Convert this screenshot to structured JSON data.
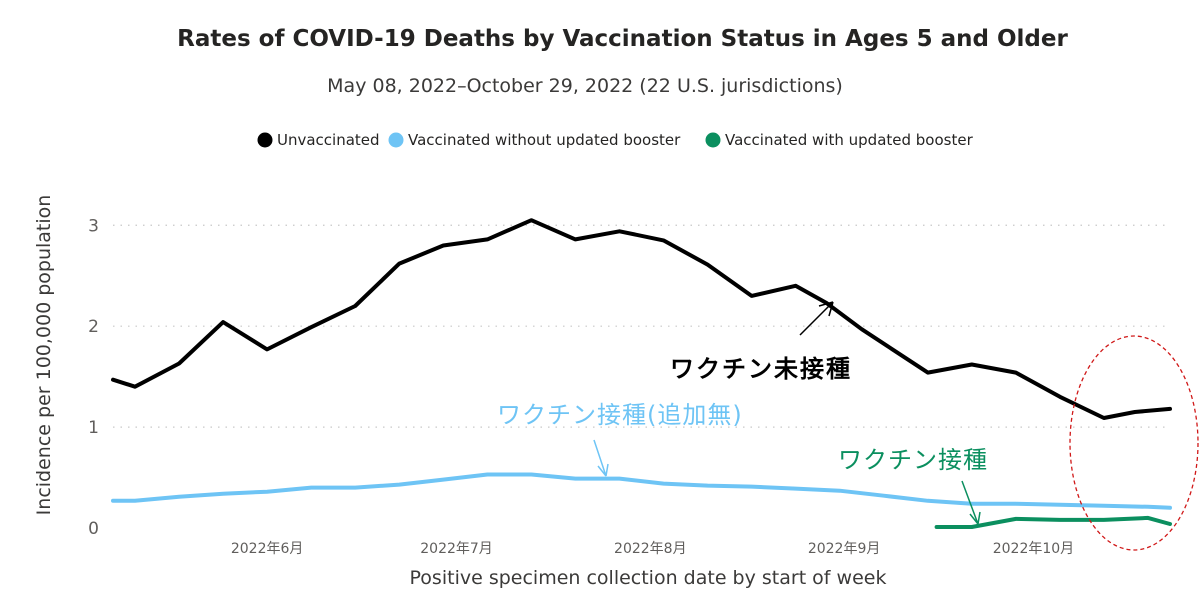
{
  "chart_data": {
    "type": "line",
    "title": "Rates of COVID-19 Deaths by Vaccination Status in Ages 5 and Older",
    "subtitle": "May 08, 2022–October 29, 2022 (22 U.S. jurisdictions)",
    "xlabel": "Positive specimen collection date by start of week",
    "ylabel": "Incidence per 100,000 population",
    "ylim": [
      0,
      3.3
    ],
    "yticks": [
      "0",
      "1",
      "2",
      "3"
    ],
    "xlim": [
      0,
      24
    ],
    "month_ticks": [
      {
        "label": "2022年6月",
        "x": 3.5
      },
      {
        "label": "2022年7月",
        "x": 7.8
      },
      {
        "label": "2022年8月",
        "x": 12.2
      },
      {
        "label": "2022年9月",
        "x": 16.6
      },
      {
        "label": "2022年10月",
        "x": 20.9
      }
    ],
    "legend_position": "top-center",
    "grid": true,
    "series": [
      {
        "name": "Unvaccinated",
        "color": "#000000",
        "x": [
          0,
          0.5,
          1.5,
          2.5,
          3.5,
          4.5,
          5.5,
          6.5,
          7.5,
          8.5,
          9.5,
          10.5,
          11.5,
          12.5,
          13.5,
          14.5,
          15.5,
          16.2,
          17,
          17.7,
          18.5,
          19.5,
          20.5,
          21.5,
          22.5,
          23.2,
          24
        ],
        "values": [
          1.47,
          1.4,
          1.63,
          2.04,
          1.77,
          1.99,
          2.2,
          2.62,
          2.8,
          2.86,
          3.05,
          2.86,
          2.94,
          2.85,
          2.61,
          2.3,
          2.4,
          2.23,
          1.97,
          1.77,
          1.54,
          1.62,
          1.54,
          1.3,
          1.09,
          1.15,
          1.18
        ]
      },
      {
        "name": "Vaccinated without updated booster",
        "color": "#6ec4f5",
        "x": [
          0,
          0.5,
          1.5,
          2.5,
          3.5,
          4.5,
          5.5,
          6.5,
          7.5,
          8.5,
          9.5,
          10.5,
          11.5,
          12.5,
          13.5,
          14.5,
          15.5,
          16.5,
          17.5,
          18.5,
          19.5,
          20.5,
          21.5,
          22.5,
          23.5,
          24
        ],
        "values": [
          0.27,
          0.27,
          0.31,
          0.34,
          0.36,
          0.4,
          0.4,
          0.43,
          0.48,
          0.53,
          0.53,
          0.49,
          0.49,
          0.44,
          0.42,
          0.41,
          0.39,
          0.37,
          0.32,
          0.27,
          0.24,
          0.24,
          0.23,
          0.22,
          0.21,
          0.2
        ]
      },
      {
        "name": "Vaccinated with updated booster",
        "color": "#0b8f5f",
        "x": [
          18.7,
          19.5,
          20.5,
          21.5,
          22.5,
          23.5,
          24
        ],
        "values": [
          0.01,
          0.01,
          0.09,
          0.08,
          0.08,
          0.1,
          0.04
        ]
      }
    ]
  },
  "annotations": {
    "unvaccinated_label": "ワクチン未接種",
    "vaccinated_no_booster_label": "ワクチン接種(追加無)",
    "vaccinated_booster_label": "ワクチン接種"
  }
}
